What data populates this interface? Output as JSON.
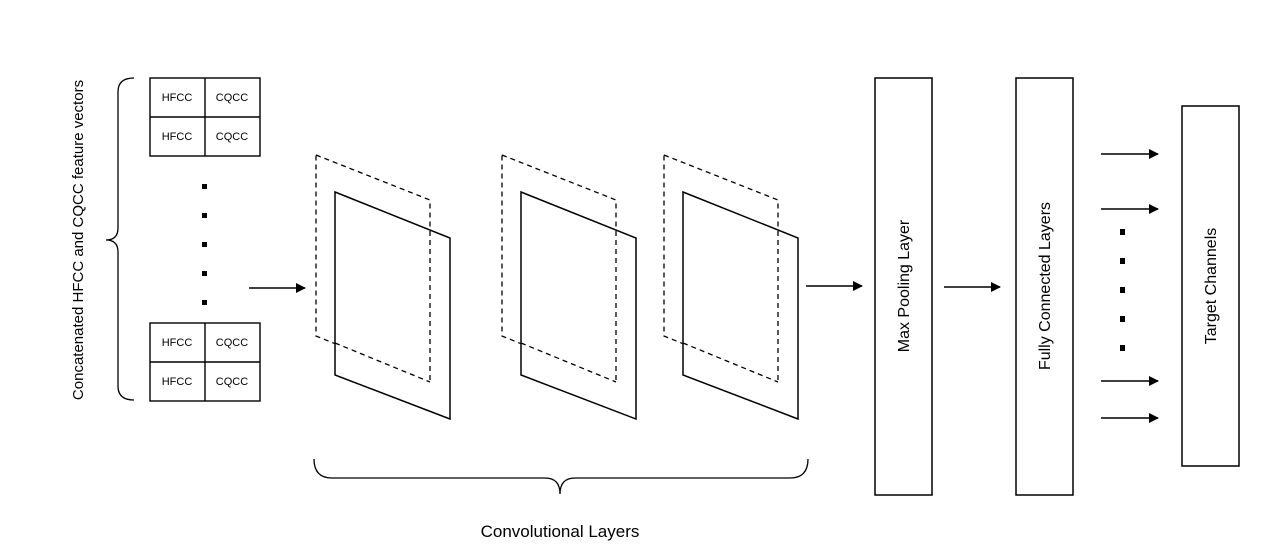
{
  "input": {
    "side_label": "Concatenated HFCC and CQCC feature vectors",
    "rows": [
      [
        "HFCC",
        "CQCC"
      ],
      [
        "HFCC",
        "CQCC"
      ],
      [
        "HFCC",
        "CQCC"
      ],
      [
        "HFCC",
        "CQCC"
      ]
    ]
  },
  "conv": {
    "label": "Convolutional Layers"
  },
  "max_pool": {
    "label": "Max Pooling Layer"
  },
  "fully_connected": {
    "label": "Fully Connected Layers"
  },
  "target": {
    "label": "Target Channels"
  }
}
